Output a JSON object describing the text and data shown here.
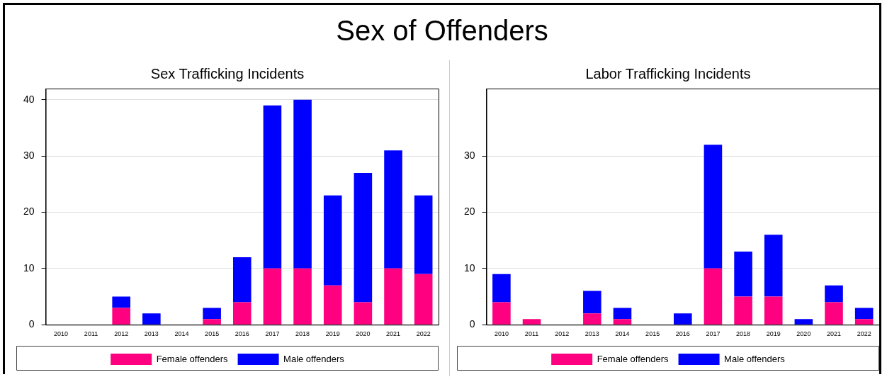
{
  "chart_data": [
    {
      "type": "bar",
      "title": "Sex Trafficking Incidents",
      "annotations": [
        "Sex of Offenders"
      ],
      "categories": [
        "2010",
        "2011",
        "2012",
        "2013",
        "2014",
        "2015",
        "2016",
        "2017",
        "2018",
        "2019",
        "2020",
        "2021",
        "2022"
      ],
      "stacked": true,
      "ylim": [
        0,
        42
      ],
      "yticks": [
        0,
        10,
        20,
        30,
        40
      ],
      "grid": "y",
      "legend": "bottom",
      "series": [
        {
          "name": "Female offenders",
          "color": "#ff0080",
          "values": [
            0,
            0,
            3,
            0,
            0,
            1,
            4,
            10,
            10,
            7,
            4,
            10,
            9
          ]
        },
        {
          "name": "Male offenders",
          "color": "#0000ff",
          "values": [
            0,
            0,
            2,
            2,
            0,
            2,
            8,
            29,
            30,
            16,
            23,
            21,
            14
          ]
        }
      ]
    },
    {
      "type": "bar",
      "title": "Labor Trafficking Incidents",
      "categories": [
        "2010",
        "2011",
        "2012",
        "2013",
        "2014",
        "2015",
        "2016",
        "2017",
        "2018",
        "2019",
        "2020",
        "2021",
        "2022"
      ],
      "stacked": true,
      "ylim": [
        0,
        42
      ],
      "yticks": [
        0,
        10,
        20,
        30
      ],
      "grid": "y",
      "legend": "bottom",
      "series": [
        {
          "name": "Female offenders",
          "color": "#ff0080",
          "values": [
            4,
            1,
            0,
            2,
            1,
            0,
            0,
            10,
            5,
            5,
            0,
            4,
            1
          ]
        },
        {
          "name": "Male offenders",
          "color": "#0000ff",
          "values": [
            5,
            0,
            0,
            4,
            2,
            0,
            2,
            22,
            8,
            11,
            1,
            3,
            2
          ]
        }
      ]
    }
  ]
}
